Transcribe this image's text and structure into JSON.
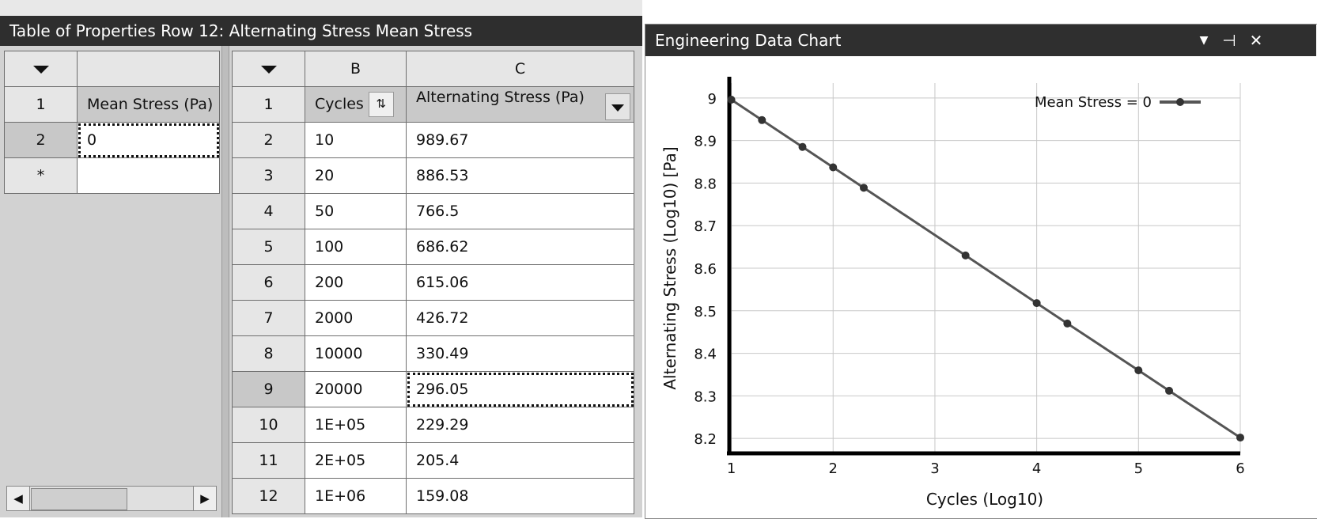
{
  "properties_panel": {
    "title": "Table of Properties Row 12: Alternating Stress Mean Stress",
    "left_grid": {
      "header_row_label": "1",
      "column_header": "Mean Stress (Pa)",
      "rows": [
        {
          "row": "2",
          "value": "0"
        },
        {
          "row": "*",
          "value": ""
        }
      ]
    },
    "right_grid": {
      "col_b": "B",
      "col_c": "C",
      "header_row_label": "1",
      "cycles_header": "Cycles",
      "stress_header": "Alternating Stress (Pa)",
      "rows": [
        {
          "row": "2",
          "cycles": "10",
          "stress": "989.67"
        },
        {
          "row": "3",
          "cycles": "20",
          "stress": "886.53"
        },
        {
          "row": "4",
          "cycles": "50",
          "stress": "766.5"
        },
        {
          "row": "5",
          "cycles": "100",
          "stress": "686.62"
        },
        {
          "row": "6",
          "cycles": "200",
          "stress": "615.06"
        },
        {
          "row": "7",
          "cycles": "2000",
          "stress": "426.72"
        },
        {
          "row": "8",
          "cycles": "10000",
          "stress": "330.49"
        },
        {
          "row": "9",
          "cycles": "20000",
          "stress": "296.05"
        },
        {
          "row": "10",
          "cycles": "1E+05",
          "stress": "229.29"
        },
        {
          "row": "11",
          "cycles": "2E+05",
          "stress": "205.4"
        },
        {
          "row": "12",
          "cycles": "1E+06",
          "stress": "159.08"
        }
      ],
      "selected_row": "9"
    }
  },
  "chart_panel": {
    "title": "Engineering Data Chart",
    "icons": [
      "dropdown-icon",
      "pin-icon",
      "close-icon"
    ]
  },
  "chart_data": {
    "type": "line",
    "xlabel": "Cycles (Log10)",
    "ylabel": "Alternating Stress (Log10) [Pa]",
    "xlim": [
      0.98,
      6.0
    ],
    "ylim": [
      8.165,
      9.035
    ],
    "xticks": [
      1,
      2,
      3,
      4,
      5,
      6
    ],
    "yticks": [
      8.2,
      8.3,
      8.4,
      8.5,
      8.6,
      8.7,
      8.8,
      8.9,
      9.0
    ],
    "ytick_labels": [
      "8.2",
      "8.3",
      "8.4",
      "8.5",
      "8.6",
      "8.7",
      "8.8",
      "8.9",
      "9"
    ],
    "grid": true,
    "legend_position": "top-right",
    "series": [
      {
        "name": "Mean Stress = 0",
        "color": "#555555",
        "x": [
          1.0,
          1.301,
          1.699,
          2.0,
          2.301,
          3.301,
          4.0,
          4.301,
          5.0,
          5.301,
          6.0
        ],
        "y": [
          8.996,
          8.948,
          8.885,
          8.837,
          8.789,
          8.63,
          8.518,
          8.47,
          8.36,
          8.312,
          8.202
        ]
      }
    ]
  }
}
